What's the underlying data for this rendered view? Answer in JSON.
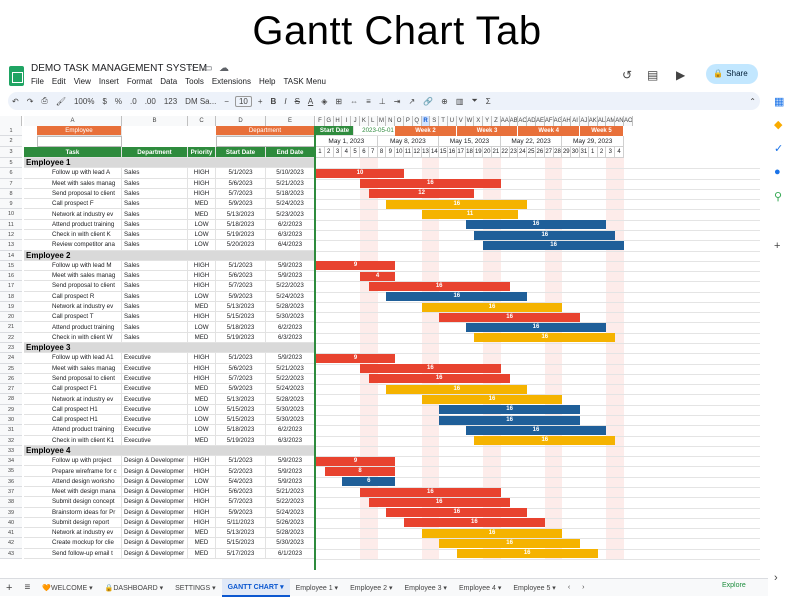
{
  "headline": "Gantt Chart Tab",
  "app": {
    "title": "DEMO TASK MANAGEMENT SYSTEM",
    "menu": [
      "File",
      "Edit",
      "View",
      "Insert",
      "Format",
      "Data",
      "Tools",
      "Extensions",
      "Help",
      "TASK Menu"
    ],
    "share_label": "Share"
  },
  "toolbar": {
    "zoom": "100%",
    "currency": "$",
    "percent": "%",
    "dec_minus": ".0",
    "dec_plus": ".00",
    "num_format": "123",
    "font": "DM Sa...",
    "font_size": "10"
  },
  "columns": [
    "A",
    "B",
    "C",
    "D",
    "E",
    "F",
    "G",
    "H",
    "I",
    "J",
    "K",
    "L",
    "M",
    "N",
    "O",
    "P",
    "Q",
    "R",
    "S",
    "T",
    "U",
    "V",
    "W",
    "X",
    "Y",
    "Z",
    "AA",
    "AB",
    "AC",
    "AD",
    "AE",
    "AF",
    "AG",
    "AH",
    "AI",
    "AJ",
    "AK",
    "AL",
    "AM",
    "AN",
    "AO"
  ],
  "selected_column": "R",
  "filters": {
    "employee_label": "Employee",
    "department_label": "Department",
    "start_date_label": "Start Date",
    "start_date_value": "2023-05-01"
  },
  "table_headers": {
    "task": "Task",
    "department": "Department",
    "priority": "Priority",
    "start": "Start Date",
    "end": "End Date"
  },
  "weeks": [
    {
      "label": "Week 2",
      "date": "May 1, 2023"
    },
    {
      "label": "Week 3",
      "date": "May 8, 2023"
    },
    {
      "label": "Week 4",
      "date": "May 15, 2023"
    },
    {
      "label": "Week 5",
      "date": "May 22, 2023"
    },
    {
      "label": "",
      "date": "May 29, 2023"
    }
  ],
  "days": [
    "1",
    "2",
    "3",
    "4",
    "5",
    "6",
    "7",
    "8",
    "9",
    "10",
    "11",
    "12",
    "13",
    "14",
    "15",
    "16",
    "17",
    "18",
    "19",
    "20",
    "21",
    "22",
    "23",
    "24",
    "25",
    "26",
    "27",
    "28",
    "29",
    "30",
    "31",
    "1",
    "2",
    "3",
    "4"
  ],
  "colors": {
    "HIGH": "#e8432f",
    "MED": "#f5b300",
    "LOW": "#1f5f99",
    "accent": "#e8703a",
    "header_green": "#2e8b3d"
  },
  "rows": [
    {
      "num": "5",
      "group": "Employee 1"
    },
    {
      "num": "6",
      "task": "Follow up with lead A",
      "dept": "Sales",
      "priority": "HIGH",
      "start": "5/1/2023",
      "end": "5/10/2023",
      "s": 1,
      "d": 10,
      "label": "10"
    },
    {
      "num": "7",
      "task": "Meet with sales manag",
      "dept": "Sales",
      "priority": "HIGH",
      "start": "5/6/2023",
      "end": "5/21/2023",
      "s": 6,
      "d": 16,
      "label": "16"
    },
    {
      "num": "8",
      "task": "Send proposal to client",
      "dept": "Sales",
      "priority": "HIGH",
      "start": "5/7/2023",
      "end": "5/18/2023",
      "s": 7,
      "d": 12,
      "label": "12"
    },
    {
      "num": "9",
      "task": "Call prospect F",
      "dept": "Sales",
      "priority": "MED",
      "start": "5/9/2023",
      "end": "5/24/2023",
      "s": 9,
      "d": 16,
      "label": "16"
    },
    {
      "num": "10",
      "task": "Network at industry ev",
      "dept": "Sales",
      "priority": "MED",
      "start": "5/13/2023",
      "end": "5/23/2023",
      "s": 13,
      "d": 11,
      "label": "11"
    },
    {
      "num": "11",
      "task": "Attend product training",
      "dept": "Sales",
      "priority": "LOW",
      "start": "5/18/2023",
      "end": "6/2/2023",
      "s": 18,
      "d": 16,
      "label": "16"
    },
    {
      "num": "12",
      "task": "Check in with client K",
      "dept": "Sales",
      "priority": "LOW",
      "start": "5/19/2023",
      "end": "6/3/2023",
      "s": 19,
      "d": 16,
      "label": "16"
    },
    {
      "num": "13",
      "task": "Review competitor ana",
      "dept": "Sales",
      "priority": "LOW",
      "start": "5/20/2023",
      "end": "6/4/2023",
      "s": 20,
      "d": 16,
      "label": "16"
    },
    {
      "num": "14",
      "group": "Employee 2"
    },
    {
      "num": "15",
      "task": "Follow up with lead M",
      "dept": "Sales",
      "priority": "HIGH",
      "start": "5/1/2023",
      "end": "5/9/2023",
      "s": 1,
      "d": 9,
      "label": "9"
    },
    {
      "num": "16",
      "task": "Meet with sales manag",
      "dept": "Sales",
      "priority": "HIGH",
      "start": "5/6/2023",
      "end": "5/9/2023",
      "s": 6,
      "d": 4,
      "label": "4"
    },
    {
      "num": "17",
      "task": "Send proposal to client",
      "dept": "Sales",
      "priority": "HIGH",
      "start": "5/7/2023",
      "end": "5/22/2023",
      "s": 7,
      "d": 16,
      "label": "16"
    },
    {
      "num": "18",
      "task": "Call prospect R",
      "dept": "Sales",
      "priority": "LOW",
      "start": "5/9/2023",
      "end": "5/24/2023",
      "s": 9,
      "d": 16,
      "label": "16"
    },
    {
      "num": "19",
      "task": "Network at industry ev",
      "dept": "Sales",
      "priority": "MED",
      "start": "5/13/2023",
      "end": "5/28/2023",
      "s": 13,
      "d": 16,
      "label": "16"
    },
    {
      "num": "20",
      "task": "Call prospect T",
      "dept": "Sales",
      "priority": "HIGH",
      "start": "5/15/2023",
      "end": "5/30/2023",
      "s": 15,
      "d": 16,
      "label": "16"
    },
    {
      "num": "21",
      "task": "Attend product training",
      "dept": "Sales",
      "priority": "LOW",
      "start": "5/18/2023",
      "end": "6/2/2023",
      "s": 18,
      "d": 16,
      "label": "16"
    },
    {
      "num": "22",
      "task": "Check in with client W",
      "dept": "Sales",
      "priority": "MED",
      "start": "5/19/2023",
      "end": "6/3/2023",
      "s": 19,
      "d": 16,
      "label": "16"
    },
    {
      "num": "23",
      "group": "Employee 3"
    },
    {
      "num": "24",
      "task": "Follow up with lead A1",
      "dept": "Executive",
      "priority": "HIGH",
      "start": "5/1/2023",
      "end": "5/9/2023",
      "s": 1,
      "d": 9,
      "label": "9"
    },
    {
      "num": "25",
      "task": "Meet with sales manag",
      "dept": "Executive",
      "priority": "HIGH",
      "start": "5/6/2023",
      "end": "5/21/2023",
      "s": 6,
      "d": 16,
      "label": "16"
    },
    {
      "num": "26",
      "task": "Send proposal to client",
      "dept": "Executive",
      "priority": "HIGH",
      "start": "5/7/2023",
      "end": "5/22/2023",
      "s": 7,
      "d": 16,
      "label": "16"
    },
    {
      "num": "27",
      "task": "Call prospect F1",
      "dept": "Executive",
      "priority": "MED",
      "start": "5/9/2023",
      "end": "5/24/2023",
      "s": 9,
      "d": 16,
      "label": "16"
    },
    {
      "num": "28",
      "task": "Network at industry ev",
      "dept": "Executive",
      "priority": "MED",
      "start": "5/13/2023",
      "end": "5/28/2023",
      "s": 13,
      "d": 16,
      "label": "16"
    },
    {
      "num": "29",
      "task": "Call prospect H1",
      "dept": "Executive",
      "priority": "LOW",
      "start": "5/15/2023",
      "end": "5/30/2023",
      "s": 15,
      "d": 16,
      "label": "16"
    },
    {
      "num": "30",
      "task": "Call prospect H1",
      "dept": "Executive",
      "priority": "LOW",
      "start": "5/15/2023",
      "end": "5/30/2023",
      "s": 15,
      "d": 16,
      "label": "16"
    },
    {
      "num": "31",
      "task": "Attend product training",
      "dept": "Executive",
      "priority": "LOW",
      "start": "5/18/2023",
      "end": "6/2/2023",
      "s": 18,
      "d": 16,
      "label": "16"
    },
    {
      "num": "32",
      "task": "Check in with client K1",
      "dept": "Executive",
      "priority": "MED",
      "start": "5/19/2023",
      "end": "6/3/2023",
      "s": 19,
      "d": 16,
      "label": "16"
    },
    {
      "num": "33",
      "group": "Employee 4"
    },
    {
      "num": "34",
      "task": "Follow up with project",
      "dept": "Design & Developmer",
      "priority": "HIGH",
      "start": "5/1/2023",
      "end": "5/9/2023",
      "s": 1,
      "d": 9,
      "label": "9"
    },
    {
      "num": "35",
      "task": "Prepare wireframe for c",
      "dept": "Design & Developmer",
      "priority": "HIGH",
      "start": "5/2/2023",
      "end": "5/9/2023",
      "s": 2,
      "d": 8,
      "label": "8"
    },
    {
      "num": "36",
      "task": "Attend design worksho",
      "dept": "Design & Developmer",
      "priority": "LOW",
      "start": "5/4/2023",
      "end": "5/9/2023",
      "s": 4,
      "d": 6,
      "label": "6"
    },
    {
      "num": "37",
      "task": "Meet with design mana",
      "dept": "Design & Developmer",
      "priority": "HIGH",
      "start": "5/6/2023",
      "end": "5/21/2023",
      "s": 6,
      "d": 16,
      "label": "16"
    },
    {
      "num": "38",
      "task": "Submit design concept",
      "dept": "Design & Developmer",
      "priority": "HIGH",
      "start": "5/7/2023",
      "end": "5/22/2023",
      "s": 7,
      "d": 16,
      "label": "16"
    },
    {
      "num": "39",
      "task": "Brainstorm ideas for Pr",
      "dept": "Design & Developmer",
      "priority": "HIGH",
      "start": "5/9/2023",
      "end": "5/24/2023",
      "s": 9,
      "d": 16,
      "label": "16"
    },
    {
      "num": "40",
      "task": "Submit design report",
      "dept": "Design & Developmer",
      "priority": "HIGH",
      "start": "5/11/2023",
      "end": "5/26/2023",
      "s": 11,
      "d": 16,
      "label": "16"
    },
    {
      "num": "41",
      "task": "Network at industry ev",
      "dept": "Design & Developmer",
      "priority": "MED",
      "start": "5/13/2023",
      "end": "5/28/2023",
      "s": 13,
      "d": 16,
      "label": "16"
    },
    {
      "num": "42",
      "task": "Create mockup for clie",
      "dept": "Design & Developmer",
      "priority": "MED",
      "start": "5/15/2023",
      "end": "5/30/2023",
      "s": 15,
      "d": 16,
      "label": "16"
    },
    {
      "num": "43",
      "task": "Send follow-up email t",
      "dept": "Design & Developmer",
      "priority": "MED",
      "start": "5/17/2023",
      "end": "6/1/2023",
      "s": 17,
      "d": 16,
      "label": "16"
    }
  ],
  "sheet_tabs": [
    "WELCOME",
    "DASHBOARD",
    "SETTINGS",
    "GANTT CHART",
    "Employee 1",
    "Employee 2",
    "Employee 3",
    "Employee 4",
    "Employee 5"
  ],
  "active_tab": "GANTT CHART",
  "explore_label": "Explore"
}
